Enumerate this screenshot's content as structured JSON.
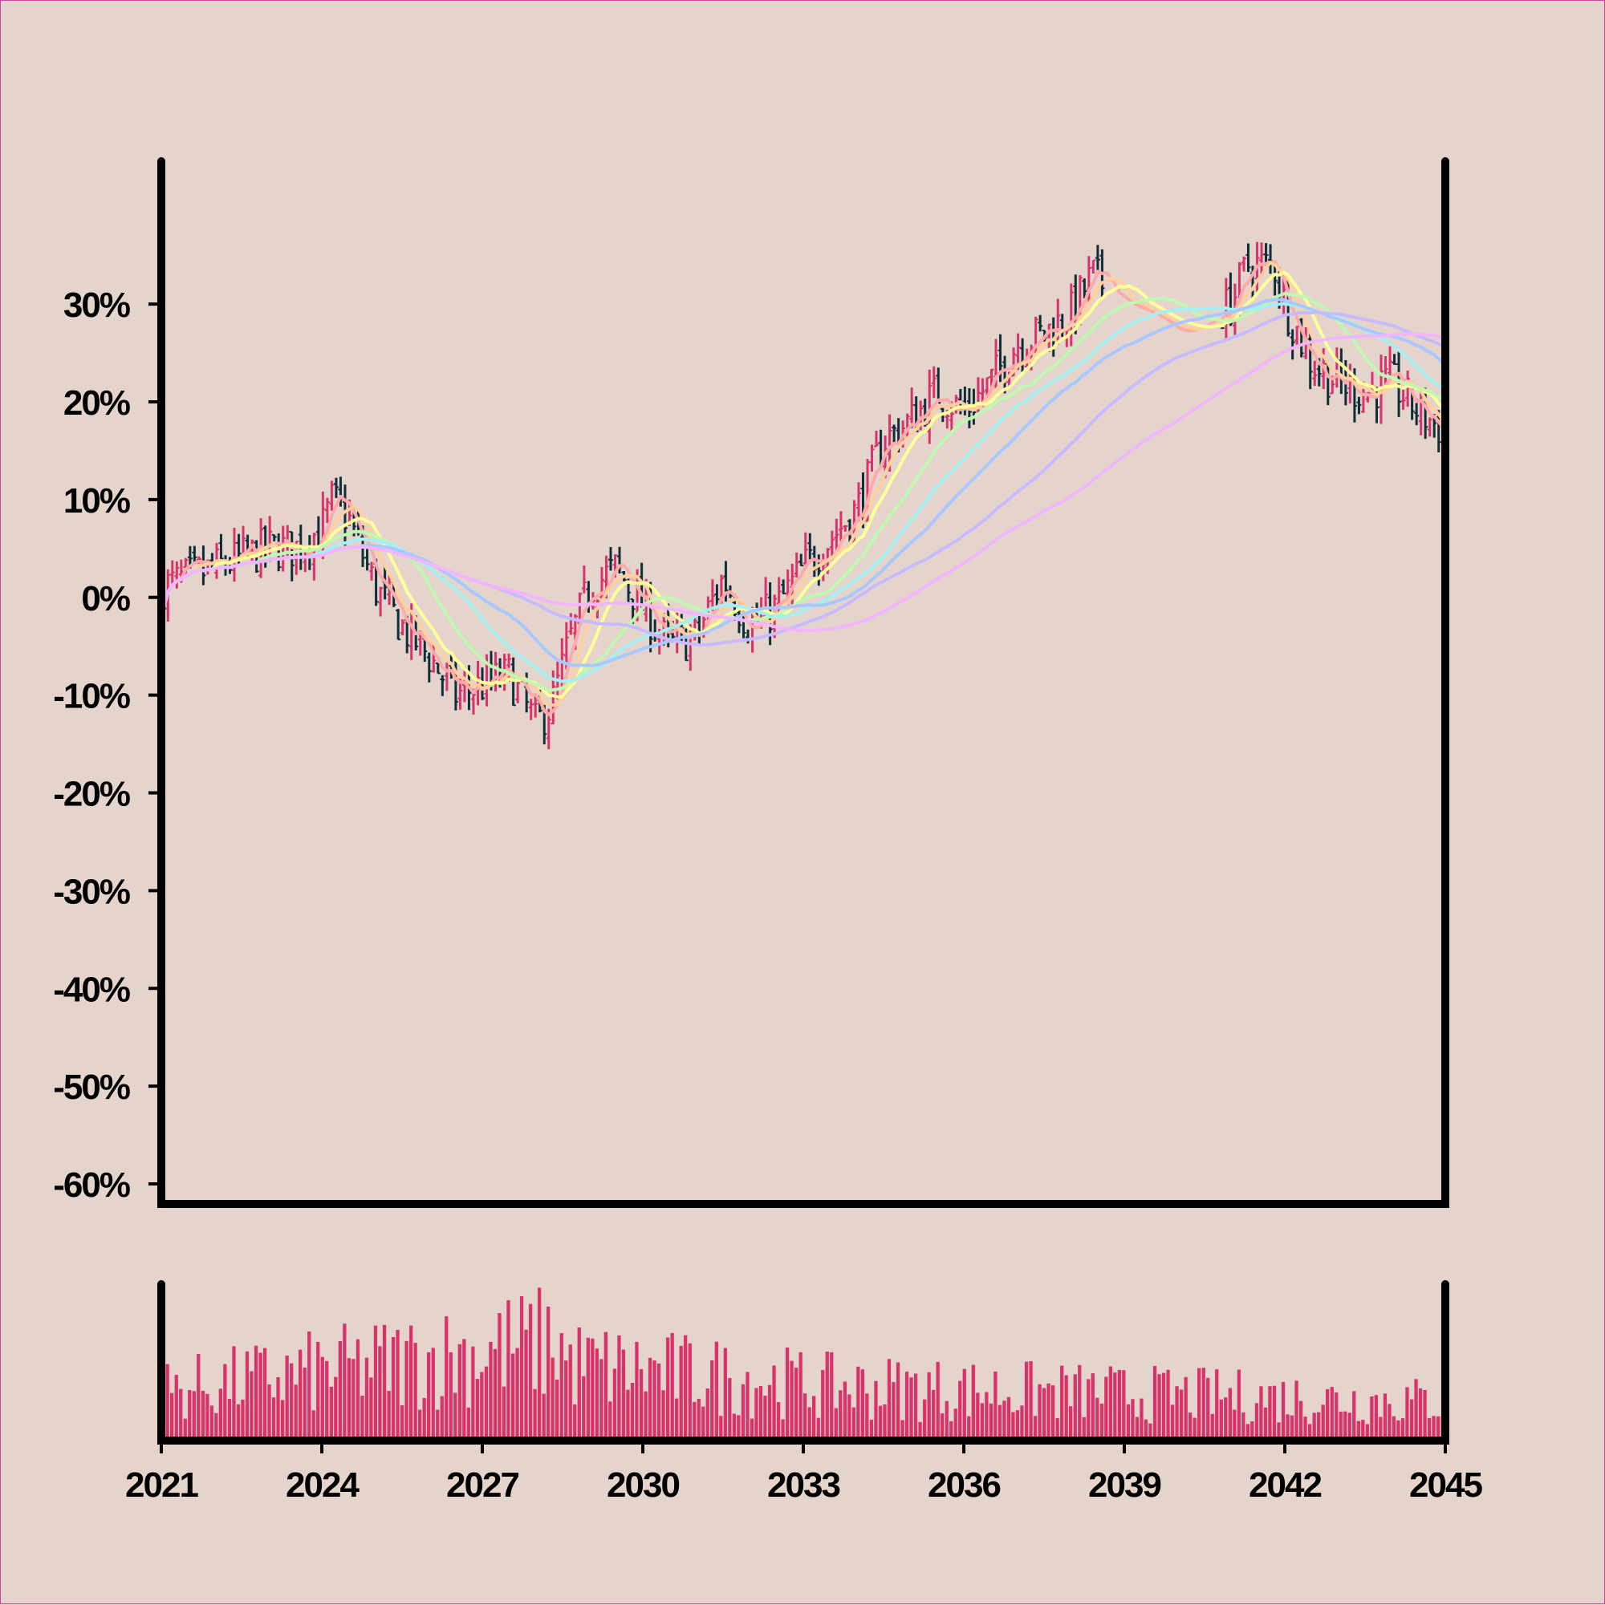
{
  "chart_data": {
    "type": "ohlc",
    "title": "",
    "xlabel": "",
    "ylabel": "",
    "x_range": [
      2021.0,
      2045.0
    ],
    "ylim": [
      -60,
      36
    ],
    "y_ticks": [
      30,
      20,
      10,
      0,
      -10,
      -20,
      -30,
      -40,
      -50,
      -60
    ],
    "y_tick_labels": [
      "30%",
      "20%",
      "10%",
      "0%",
      "-10%",
      "-20%",
      "-30%",
      "-40%",
      "-50%",
      "-60%"
    ],
    "x_ticks": [
      2021,
      2024,
      2027,
      2030,
      2033,
      2036,
      2039,
      2042,
      2045
    ],
    "x_tick_labels": [
      "2021",
      "2024",
      "2027",
      "2030",
      "2033",
      "2036",
      "2039",
      "2042",
      "2045"
    ],
    "price_path": [
      [
        2021.0,
        1
      ],
      [
        2021.5,
        2
      ],
      [
        2022.0,
        3
      ],
      [
        2022.5,
        4
      ],
      [
        2023.0,
        5
      ],
      [
        2023.5,
        5
      ],
      [
        2024.0,
        7
      ],
      [
        2024.2,
        10
      ],
      [
        2024.5,
        8
      ],
      [
        2025.0,
        1
      ],
      [
        2025.5,
        -3
      ],
      [
        2026.0,
        -6
      ],
      [
        2026.5,
        -10
      ],
      [
        2027.0,
        -9
      ],
      [
        2027.5,
        -8
      ],
      [
        2028.0,
        -13
      ],
      [
        2028.3,
        -11
      ],
      [
        2028.6,
        -5
      ],
      [
        2029.0,
        1
      ],
      [
        2029.5,
        3
      ],
      [
        2030.0,
        -1
      ],
      [
        2030.5,
        -5
      ],
      [
        2031.0,
        -4
      ],
      [
        2031.5,
        2
      ],
      [
        2032.0,
        -3
      ],
      [
        2032.5,
        -1
      ],
      [
        2033.0,
        3
      ],
      [
        2033.5,
        6
      ],
      [
        2034.0,
        9
      ],
      [
        2034.5,
        16
      ],
      [
        2035.0,
        18
      ],
      [
        2035.5,
        21
      ],
      [
        2036.0,
        19
      ],
      [
        2036.5,
        22
      ],
      [
        2037.0,
        26
      ],
      [
        2037.5,
        27
      ],
      [
        2038.0,
        29
      ],
      [
        2038.4,
        33
      ],
      [
        2039.0,
        30
      ],
      [
        2039.5,
        29
      ],
      [
        2040.0,
        27
      ],
      [
        2040.5,
        28
      ],
      [
        2041.0,
        30
      ],
      [
        2041.3,
        34
      ],
      [
        2041.8,
        34
      ],
      [
        2042.0,
        30
      ],
      [
        2042.5,
        24
      ],
      [
        2043.0,
        22
      ],
      [
        2043.5,
        21
      ],
      [
        2044.0,
        22
      ],
      [
        2044.5,
        19
      ],
      [
        2045.0,
        17
      ]
    ],
    "gap": [
      2038.6,
      2040.8
    ],
    "moving_averages": [
      {
        "color": "#ffaaa8",
        "window": 5
      },
      {
        "color": "#ffd09e",
        "window": 8
      },
      {
        "color": "#ffff9a",
        "window": 12
      },
      {
        "color": "#bff8b0",
        "window": 22
      },
      {
        "color": "#a4f0f2",
        "window": 34
      },
      {
        "color": "#a8c8ff",
        "window": 45
      },
      {
        "color": "#c8baff",
        "window": 70
      },
      {
        "color": "#f2b6ff",
        "window": 100
      }
    ],
    "colors": {
      "background": "#e4d4cc",
      "up": "#d8336a",
      "down": "#0f2e3a",
      "volume": "#d8336a",
      "axis": "#000000"
    },
    "volume_note": "relative volume bars below price panel"
  }
}
